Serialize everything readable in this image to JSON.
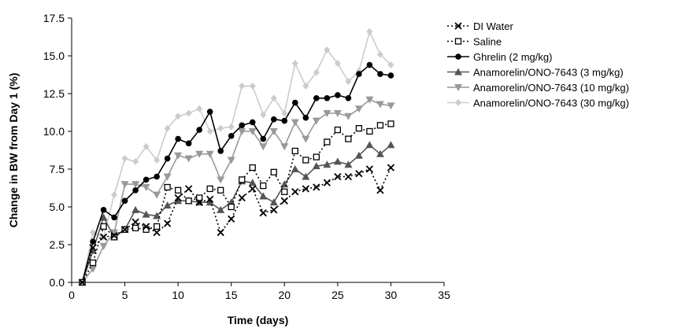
{
  "chart_data": {
    "type": "line",
    "xlabel": "Time (days)",
    "ylabel": "Change in BW from Day 1 (%)",
    "xlim": [
      0,
      35
    ],
    "ylim": [
      0,
      17.5
    ],
    "x_ticks": [
      "0",
      "5",
      "10",
      "15",
      "20",
      "25",
      "30",
      "35"
    ],
    "y_ticks": [
      "0.0",
      "2.5",
      "5.0",
      "7.5",
      "10.0",
      "12.5",
      "15.0",
      "17.5"
    ],
    "grid": false,
    "legend_position": "right",
    "x": [
      1,
      2,
      3,
      4,
      5,
      6,
      7,
      8,
      9,
      10,
      11,
      12,
      13,
      14,
      15,
      16,
      17,
      18,
      19,
      20,
      21,
      22,
      23,
      24,
      25,
      26,
      27,
      28,
      29,
      30
    ],
    "series": [
      {
        "name": "DI Water",
        "color": "#000000",
        "dash": "2,3",
        "marker": "x",
        "values": [
          0,
          2.3,
          3.0,
          3.1,
          3.5,
          4.0,
          3.7,
          3.3,
          3.9,
          5.6,
          6.2,
          5.3,
          5.5,
          3.3,
          4.2,
          5.6,
          6.2,
          4.6,
          4.8,
          5.4,
          6.0,
          6.2,
          6.3,
          6.6,
          7.0,
          7.0,
          7.2,
          7.5,
          6.1,
          7.6
        ]
      },
      {
        "name": "Saline",
        "color": "#000000",
        "dash": "2,3",
        "marker": "open-square",
        "values": [
          0,
          1.3,
          3.7,
          3.0,
          3.5,
          3.6,
          3.5,
          3.7,
          6.3,
          6.1,
          5.4,
          5.6,
          6.2,
          6.1,
          5.0,
          6.8,
          7.6,
          6.4,
          7.3,
          6.0,
          8.7,
          8.1,
          8.3,
          9.3,
          10.1,
          9.5,
          10.2,
          10.0,
          10.4,
          10.5
        ]
      },
      {
        "name": "Ghrelin (2 mg/kg)",
        "color": "#000000",
        "dash": "",
        "marker": "circle",
        "values": [
          0,
          2.7,
          4.8,
          4.3,
          5.4,
          6.1,
          6.8,
          7.0,
          8.2,
          9.5,
          9.2,
          10.1,
          11.3,
          8.7,
          9.7,
          10.4,
          10.6,
          9.5,
          10.8,
          10.7,
          11.9,
          10.9,
          12.2,
          12.2,
          12.4,
          12.2,
          13.8,
          14.4,
          13.8,
          13.7
        ]
      },
      {
        "name": "Anamorelin/ONO-7643 (3 mg/kg)",
        "color": "#555555",
        "dash": "",
        "marker": "triangle-up",
        "values": [
          0,
          2.1,
          4.3,
          3.0,
          3.5,
          4.8,
          4.5,
          4.4,
          5.1,
          5.4,
          5.4,
          5.3,
          5.3,
          4.8,
          5.3,
          6.7,
          6.6,
          5.7,
          5.3,
          6.5,
          7.5,
          7.0,
          7.7,
          7.8,
          8.0,
          7.8,
          8.4,
          9.1,
          8.5,
          9.1
        ]
      },
      {
        "name": "Anamorelin/ONO-7643 (10 mg/kg)",
        "color": "#999999",
        "dash": "",
        "marker": "triangle-down",
        "values": [
          0,
          0.9,
          2.4,
          3.3,
          6.5,
          6.5,
          6.3,
          5.8,
          7.0,
          8.4,
          8.2,
          8.5,
          8.5,
          6.8,
          8.1,
          10.0,
          10.0,
          9.0,
          10.0,
          9.0,
          10.6,
          9.5,
          10.7,
          11.2,
          11.2,
          11.0,
          11.5,
          12.1,
          11.8,
          11.7
        ]
      },
      {
        "name": "Anamorelin/ONO-7643 (30 mg/kg)",
        "color": "#cccccc",
        "dash": "",
        "marker": "diamond",
        "values": [
          0,
          3.3,
          3.0,
          5.8,
          8.2,
          8.0,
          9.0,
          8.1,
          10.2,
          11.0,
          11.2,
          11.5,
          10.0,
          10.2,
          10.3,
          13.0,
          13.0,
          11.1,
          12.2,
          11.2,
          14.5,
          13.0,
          13.9,
          15.4,
          14.5,
          13.3,
          14.0,
          16.6,
          15.1,
          14.4
        ]
      }
    ]
  }
}
